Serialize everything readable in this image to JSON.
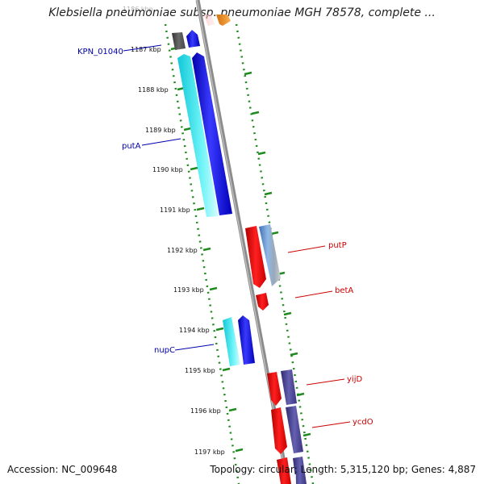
{
  "title": "Klebsiella pneumoniae subsp. pneumoniae MGH 78578, complete ...",
  "footer": {
    "accession": "Accession: NC_009648",
    "summary": "Topology: circular; Length: 5,315,120 bp; Genes: 4,887"
  },
  "map": {
    "faded_tick_label": "1186 kbp",
    "ticks": [
      "1187 kbp",
      "1188 kbp",
      "1189 kbp",
      "1190 kbp",
      "1191 kbp",
      "1192 kbp",
      "1193 kbp",
      "1194 kbp",
      "1195 kbp",
      "1196 kbp",
      "1197 kbp"
    ],
    "colors": {
      "backbone": "#8c8c8c",
      "dots": "#1f8a1f",
      "strand_minus": "#0000cc",
      "strand_plus": "#cc0000",
      "cyan": "#22e0e8",
      "dark_gray": "#555555",
      "purple": "#4a4590",
      "steel_blue": "#5f8fc8",
      "orange": "#f09020"
    },
    "minus_labels": [
      {
        "id": "kpn_01040",
        "text": "KPN_01040"
      },
      {
        "id": "puta",
        "text": "putA"
      },
      {
        "id": "nupc",
        "text": "nupC"
      }
    ],
    "plus_labels": [
      {
        "id": "putp",
        "text": "putP"
      },
      {
        "id": "beta",
        "text": "betA"
      },
      {
        "id": "yijd",
        "text": "yijD"
      },
      {
        "id": "ycdo",
        "text": "ycdO"
      }
    ]
  }
}
